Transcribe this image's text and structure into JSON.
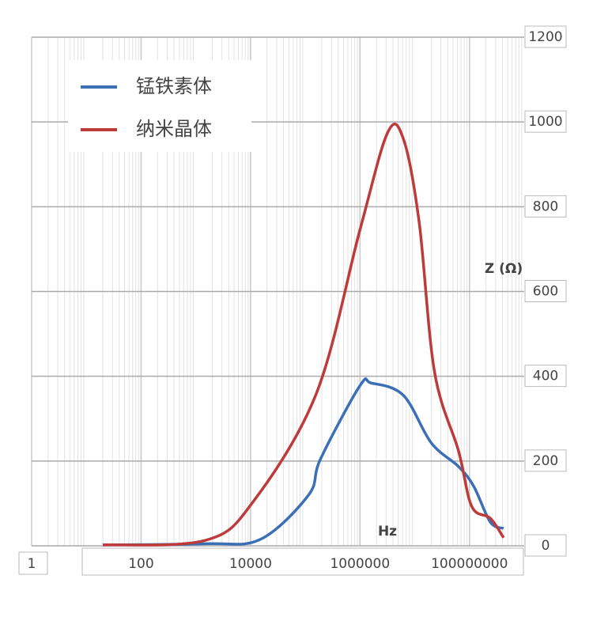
{
  "chart_data": {
    "type": "line",
    "x_label": "Hz",
    "y_label": "Z (Ω)",
    "xscale": "log",
    "xlim": [
      1,
      1000000000
    ],
    "xticks": [
      1,
      100,
      10000,
      1000000,
      100000000
    ],
    "ylim": [
      0,
      1200
    ],
    "yticks": [
      0,
      200,
      400,
      600,
      800,
      1000,
      1200
    ],
    "grid": true,
    "legend": "upper left",
    "series": [
      {
        "name": "锰铁素体",
        "color": "#3b6fb6",
        "x": [
          20,
          1500,
          15000,
          115000,
          190000,
          1000000,
          1600000,
          6200000,
          20000000,
          63000000,
          120000000,
          240000000,
          420000000
        ],
        "values": [
          2,
          5,
          15,
          120,
          205,
          378,
          384,
          355,
          243,
          187,
          140,
          56,
          41
        ]
      },
      {
        "name": "纳米晶体",
        "color": "#be3b3b",
        "x": [
          20,
          1500,
          11000,
          160000,
          1000000,
          3200000,
          6200000,
          12000000,
          23000000,
          63000000,
          110000000,
          240000000,
          420000000
        ],
        "values": [
          2,
          13,
          103,
          360,
          746,
          975,
          960,
          765,
          410,
          224,
          93,
          65,
          19
        ]
      }
    ]
  }
}
